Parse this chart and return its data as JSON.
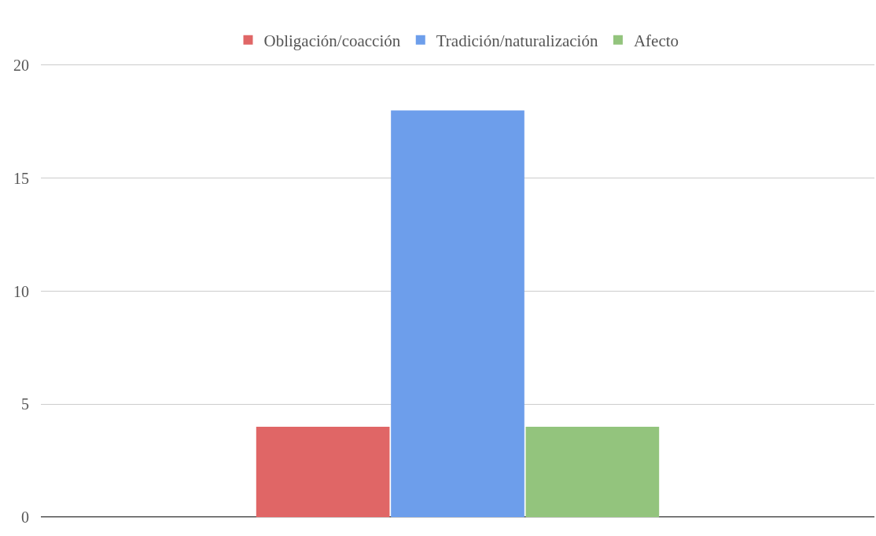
{
  "chart_data": {
    "type": "bar",
    "categories": [
      null
    ],
    "series": [
      {
        "name": "Obligación/coacción",
        "color": "#e06666",
        "values": [
          4
        ]
      },
      {
        "name": "Tradición/naturalización",
        "color": "#6d9eeb",
        "values": [
          18
        ]
      },
      {
        "name": "Afecto",
        "color": "#93c47d",
        "values": [
          4
        ]
      }
    ],
    "ylim": [
      0,
      20
    ],
    "yticks": [
      0,
      5,
      10,
      15,
      20
    ],
    "grid": "y",
    "legend": "top"
  }
}
